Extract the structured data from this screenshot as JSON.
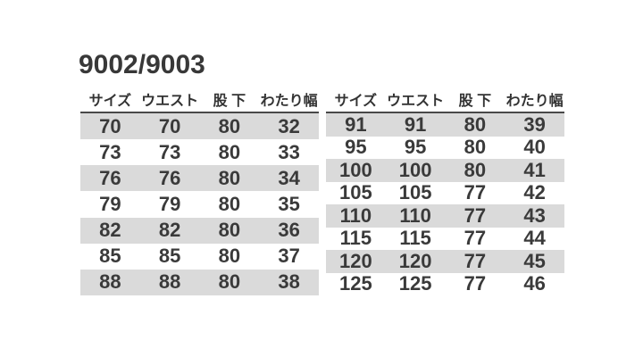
{
  "page": {
    "title": "9002/9003"
  },
  "colors": {
    "background": "#ffffff",
    "stripe": "#dadada",
    "text": "#3a3a3a",
    "header_underline": "#484848"
  },
  "tables": [
    {
      "name": "size-table-left",
      "headers": [
        "サイズ",
        "ウエスト",
        "股 下",
        "わたり幅"
      ],
      "rows": [
        [
          70,
          70,
          80,
          32
        ],
        [
          73,
          73,
          80,
          33
        ],
        [
          76,
          76,
          80,
          34
        ],
        [
          79,
          79,
          80,
          35
        ],
        [
          82,
          82,
          80,
          36
        ],
        [
          85,
          85,
          80,
          37
        ],
        [
          88,
          88,
          80,
          38
        ]
      ]
    },
    {
      "name": "size-table-right",
      "headers": [
        "サイズ",
        "ウエスト",
        "股 下",
        "わたり幅"
      ],
      "rows": [
        [
          91,
          91,
          80,
          39
        ],
        [
          95,
          95,
          80,
          40
        ],
        [
          100,
          100,
          80,
          41
        ],
        [
          105,
          105,
          77,
          42
        ],
        [
          110,
          110,
          77,
          43
        ],
        [
          115,
          115,
          77,
          44
        ],
        [
          120,
          120,
          77,
          45
        ],
        [
          125,
          125,
          77,
          46
        ]
      ]
    }
  ]
}
